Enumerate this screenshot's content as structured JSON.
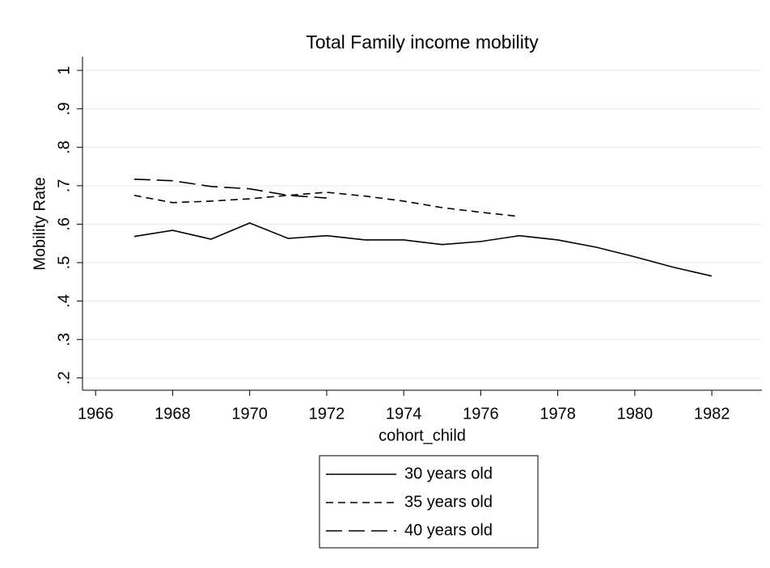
{
  "chart_data": {
    "type": "line",
    "title": "Total Family income mobility",
    "xlabel": "cohort_child",
    "ylabel": "Mobility Rate",
    "x": [
      1967,
      1968,
      1969,
      1970,
      1971,
      1972,
      1973,
      1974,
      1975,
      1976,
      1977,
      1978,
      1979,
      1980,
      1981,
      1982
    ],
    "series": [
      {
        "name": "30 years old",
        "color": "#000000",
        "line_style": "solid",
        "values": [
          0.568,
          0.584,
          0.561,
          0.603,
          0.563,
          0.57,
          0.559,
          0.559,
          0.547,
          0.555,
          0.57,
          0.559,
          0.54,
          0.515,
          0.488,
          0.465
        ]
      },
      {
        "name": "35 years old",
        "color": "#000000",
        "line_style": "dashed",
        "values": [
          0.675,
          0.656,
          0.66,
          0.666,
          0.675,
          0.683,
          0.673,
          0.66,
          0.643,
          0.631,
          0.62,
          null,
          null,
          null,
          null,
          null
        ]
      },
      {
        "name": "40 years old",
        "color": "#000000",
        "line_style": "longdash",
        "values": [
          0.717,
          0.713,
          0.698,
          0.692,
          0.675,
          0.668,
          null,
          null,
          null,
          null,
          null,
          null,
          null,
          null,
          null,
          null
        ]
      }
    ],
    "xlim": [
      1965.66,
      1983.3
    ],
    "xticks": [
      1966,
      1968,
      1970,
      1972,
      1974,
      1976,
      1978,
      1980,
      1982
    ],
    "ylim": [
      0.168,
      1.036
    ],
    "yticks": [
      {
        "value": 0.2,
        "label": ".2"
      },
      {
        "value": 0.3,
        "label": ".3"
      },
      {
        "value": 0.4,
        "label": ".4"
      },
      {
        "value": 0.5,
        "label": ".5"
      },
      {
        "value": 0.6,
        "label": ".6"
      },
      {
        "value": 0.7,
        "label": ".7"
      },
      {
        "value": 0.8,
        "label": ".8"
      },
      {
        "value": 0.9,
        "label": ".9"
      },
      1
    ],
    "grid": true,
    "legend": "bottom"
  }
}
